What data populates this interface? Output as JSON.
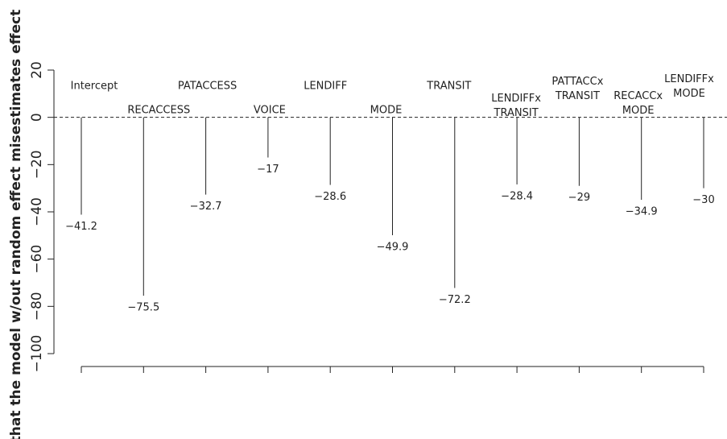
{
  "chart_data": {
    "type": "stem",
    "y_label": "% that the model w/out random effect misestimates effect",
    "categories": [
      "Intercept",
      "RECACCESS",
      "PATACCESS",
      "VOICE",
      "LENDIFF",
      "MODE",
      "TRANSIT",
      "LENDIFFx\nTRANSIT",
      "PATTACCx\nTRANSIT",
      "RECACCx\nMODE",
      "LENDIFFx\nMODE"
    ],
    "values": [
      -41.2,
      -75.5,
      -32.7,
      -17,
      -28.6,
      -49.9,
      -72.2,
      -28.4,
      -29,
      -34.9,
      -30
    ],
    "value_labels": [
      "−41.2",
      "−75.5",
      "−32.7",
      "−17",
      "−28.6",
      "−49.9",
      "−72.2",
      "−28.4",
      "−29",
      "−34.9",
      "−30"
    ],
    "color": "#222222",
    "ylim": [
      -100,
      20
    ],
    "yticks": [
      20,
      0,
      {
        "value": -20,
        "label": "−20"
      },
      {
        "value": -40,
        "label": "−40"
      },
      {
        "value": -60,
        "label": "−60"
      },
      {
        "value": -80,
        "label": "−80"
      },
      {
        "value": -100,
        "label": "−100"
      }
    ],
    "reference_line": 0
  }
}
